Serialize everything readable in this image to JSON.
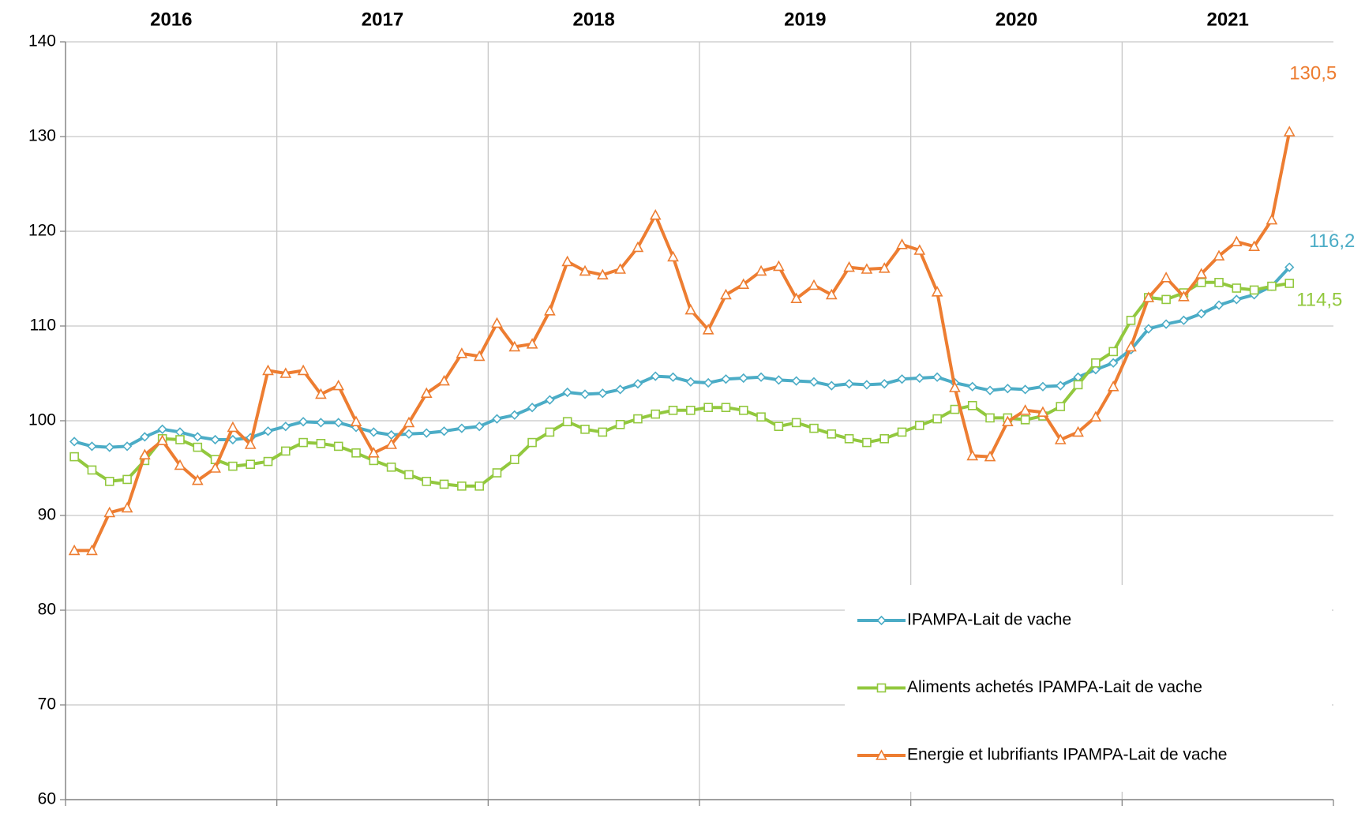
{
  "chart_data": {
    "type": "line",
    "year_labels": [
      "2016",
      "2017",
      "2018",
      "2019",
      "2020",
      "2021"
    ],
    "categories": [
      null,
      null,
      null,
      null,
      null,
      null,
      null,
      null,
      null,
      null,
      null,
      null,
      null,
      null,
      null,
      null,
      null,
      null,
      null,
      null,
      null,
      null,
      null,
      null,
      null,
      null,
      null,
      null,
      null,
      null,
      null,
      null,
      null,
      null,
      null,
      null,
      null,
      null,
      null,
      null,
      null,
      null,
      null,
      null,
      null,
      null,
      null,
      null,
      null,
      null,
      null,
      null,
      null,
      null,
      null,
      null,
      null,
      null,
      null,
      null,
      null,
      null,
      null,
      null,
      null,
      null,
      null,
      null,
      null,
      null
    ],
    "ylim": [
      60,
      140
    ],
    "yticks": [
      60,
      70,
      80,
      90,
      100,
      110,
      120,
      130,
      140
    ],
    "grid": true,
    "legend": "lower right",
    "series": [
      {
        "name": "IPAMPA-Lait de vache",
        "color": "#4bacc6",
        "marker": "diamond",
        "values": [
          97.8,
          97.3,
          97.2,
          97.3,
          98.3,
          99.1,
          98.8,
          98.3,
          98.0,
          98.0,
          98.2,
          98.9,
          99.4,
          99.9,
          99.8,
          99.8,
          99.3,
          98.8,
          98.5,
          98.6,
          98.7,
          98.9,
          99.2,
          99.4,
          100.2,
          100.6,
          101.4,
          102.2,
          103.0,
          102.8,
          102.9,
          103.3,
          103.9,
          104.7,
          104.6,
          104.1,
          104.0,
          104.4,
          104.5,
          104.6,
          104.3,
          104.2,
          104.1,
          103.7,
          103.9,
          103.8,
          103.9,
          104.4,
          104.5,
          104.6,
          104.0,
          103.6,
          103.2,
          103.4,
          103.3,
          103.6,
          103.7,
          104.6,
          105.4,
          106.1,
          107.5,
          109.7,
          110.2,
          110.6,
          111.3,
          112.2,
          112.8,
          113.3,
          114.2,
          116.2
        ],
        "value_labels": {
          "69": "116,2"
        }
      },
      {
        "name": "Aliments achetés IPAMPA-Lait de vache",
        "color": "#92c83e",
        "marker": "square",
        "values": [
          96.2,
          94.8,
          93.6,
          93.8,
          95.8,
          98.1,
          98.0,
          97.2,
          95.9,
          95.2,
          95.4,
          95.7,
          96.8,
          97.7,
          97.6,
          97.3,
          96.6,
          95.8,
          95.1,
          94.3,
          93.6,
          93.3,
          93.1,
          93.1,
          94.5,
          95.9,
          97.7,
          98.8,
          99.9,
          99.1,
          98.8,
          99.6,
          100.2,
          100.7,
          101.1,
          101.1,
          101.4,
          101.4,
          101.1,
          100.4,
          99.4,
          99.8,
          99.2,
          98.6,
          98.1,
          97.7,
          98.1,
          98.8,
          99.5,
          100.2,
          101.2,
          101.6,
          100.3,
          100.3,
          100.1,
          100.5,
          101.5,
          103.8,
          106.1,
          107.3,
          110.6,
          113.0,
          112.8,
          113.5,
          114.6,
          114.6,
          114.0,
          113.8,
          114.2,
          114.5
        ],
        "value_labels": {
          "69": "114,5"
        }
      },
      {
        "name": "Energie et lubrifiants IPAMPA-Lait de vache",
        "color": "#ed7d31",
        "marker": "triangle",
        "values": [
          86.3,
          86.3,
          90.3,
          90.8,
          96.4,
          97.9,
          95.3,
          93.7,
          95.0,
          99.3,
          97.5,
          105.3,
          105.0,
          105.3,
          102.8,
          103.7,
          99.9,
          96.6,
          97.5,
          99.8,
          102.9,
          104.2,
          107.1,
          106.8,
          110.3,
          107.8,
          108.1,
          111.6,
          116.8,
          115.8,
          115.4,
          116.0,
          118.3,
          121.7,
          117.3,
          111.7,
          109.6,
          113.3,
          114.4,
          115.8,
          116.3,
          112.9,
          114.3,
          113.3,
          116.2,
          116.0,
          116.1,
          118.6,
          118.0,
          113.6,
          103.5,
          96.3,
          96.2,
          99.9,
          101.1,
          100.9,
          98.0,
          98.8,
          100.4,
          103.6,
          107.8,
          113.0,
          115.1,
          113.1,
          115.5,
          117.4,
          118.9,
          118.4,
          121.2,
          130.5
        ],
        "value_labels": {
          "69": "130,5"
        }
      }
    ]
  }
}
